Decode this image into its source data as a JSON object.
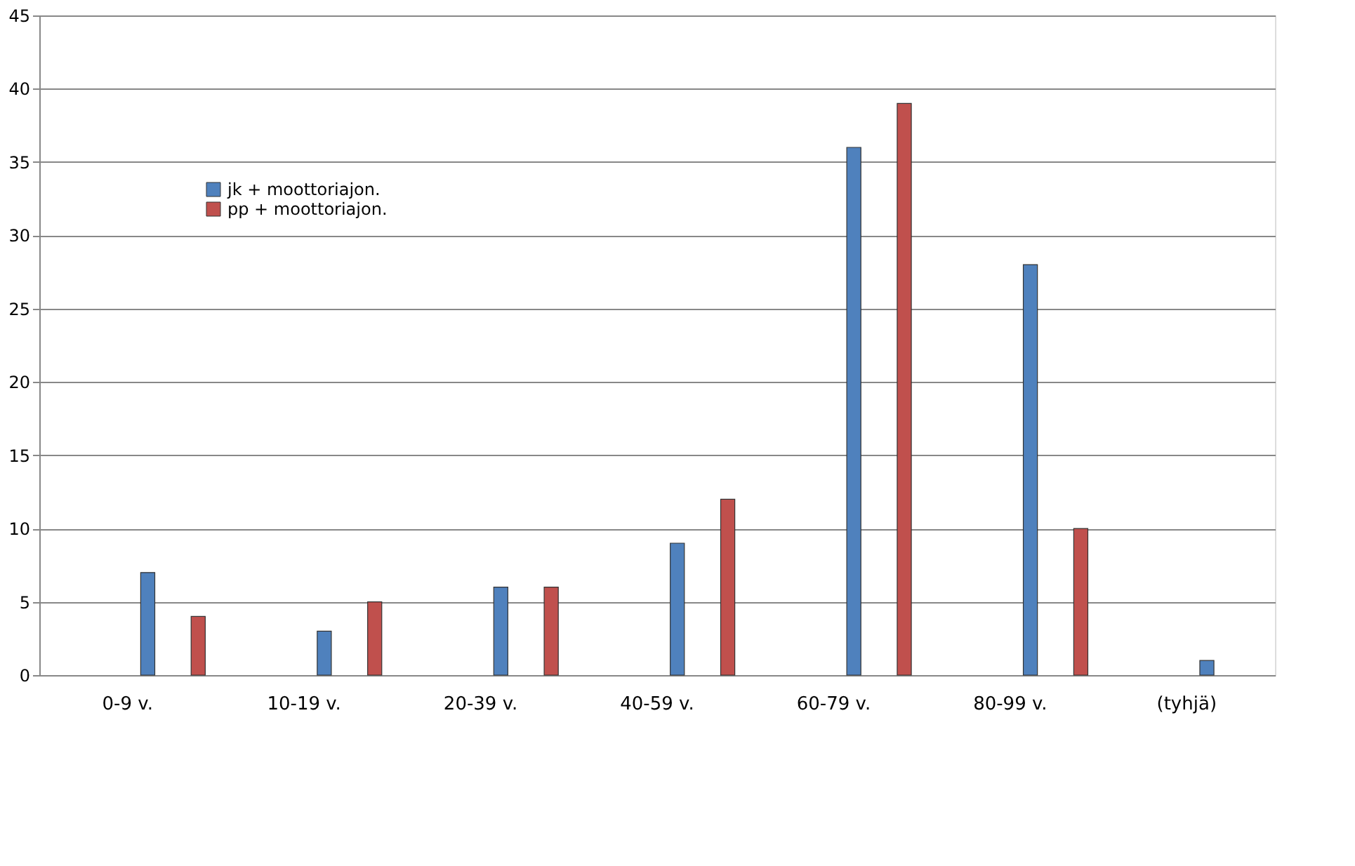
{
  "chart_data": {
    "type": "bar",
    "categories": [
      "0-9 v.",
      "10-19 v.",
      "20-39 v.",
      "40-59 v.",
      "60-79 v.",
      "80-99 v.",
      "(tyhjä)"
    ],
    "series": [
      {
        "name": "jk + moottoriajon.",
        "color": "#4f81bd",
        "values": [
          7,
          3,
          6,
          9,
          36,
          28,
          1
        ]
      },
      {
        "name": "pp + moottoriajon.",
        "color": "#c0504d",
        "values": [
          4,
          5,
          6,
          12,
          39,
          10,
          null
        ]
      }
    ],
    "ylim": [
      0,
      45
    ],
    "yticks": [
      0,
      5,
      10,
      15,
      20,
      25,
      30,
      35,
      40,
      45
    ],
    "grid": "y",
    "legend": "top left"
  }
}
